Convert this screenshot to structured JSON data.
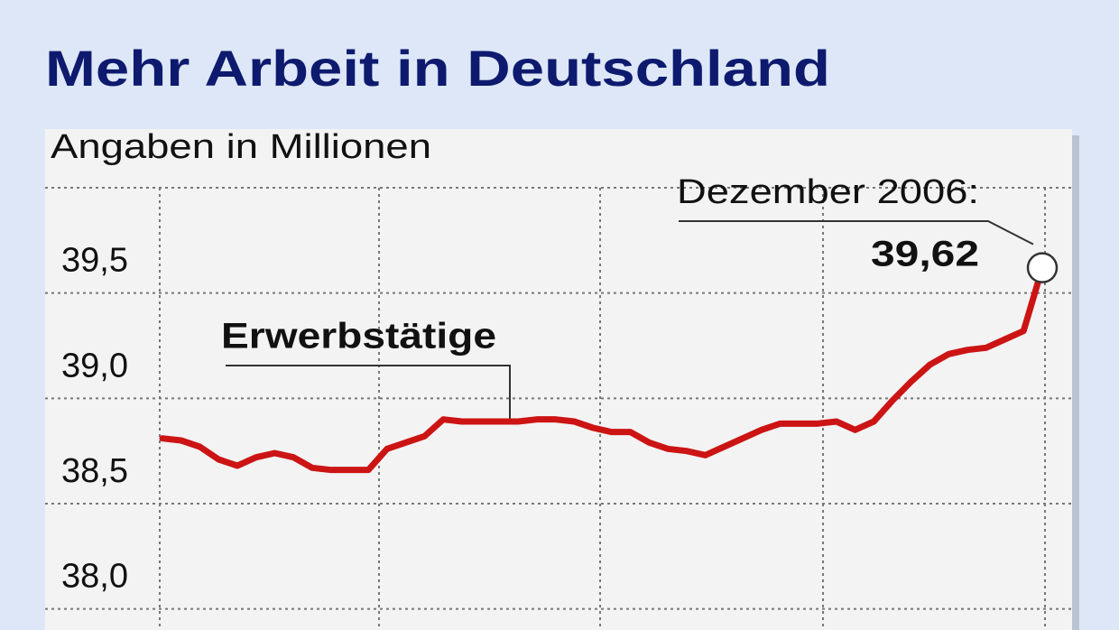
{
  "chart_data": {
    "type": "line",
    "title": "Mehr Arbeit in Deutschland",
    "subtitle": "Angaben in Millionen",
    "categories": [
      null,
      null,
      null,
      null,
      null,
      null,
      null,
      null,
      null,
      null,
      null,
      null,
      null,
      null,
      null,
      null,
      null,
      null,
      null,
      null,
      null,
      null,
      null,
      null,
      null,
      null,
      null,
      null,
      null,
      null,
      null,
      null,
      null,
      null,
      null,
      null,
      null,
      null,
      null,
      null,
      null,
      null,
      null,
      null,
      null,
      null,
      null,
      null
    ],
    "series": [
      {
        "name": "Erwerbstätige",
        "color": "#cc1414",
        "values": [
          38.81,
          38.8,
          38.77,
          38.71,
          38.68,
          38.72,
          38.74,
          38.72,
          38.67,
          38.66,
          38.66,
          38.66,
          38.76,
          38.79,
          38.82,
          38.9,
          38.89,
          38.89,
          38.89,
          38.89,
          38.9,
          38.9,
          38.89,
          38.86,
          38.84,
          38.84,
          38.79,
          38.76,
          38.75,
          38.73,
          38.77,
          38.81,
          38.85,
          38.88,
          38.88,
          38.88,
          38.89,
          38.85,
          38.89,
          38.99,
          39.08,
          39.16,
          39.21,
          39.23,
          39.24,
          39.28,
          39.32,
          39.62
        ],
        "value_labels": [
          null,
          null,
          null,
          null,
          null,
          null,
          null,
          null,
          null,
          null,
          null,
          null,
          null,
          null,
          null,
          null,
          null,
          null,
          null,
          null,
          null,
          null,
          null,
          null,
          null,
          null,
          null,
          null,
          null,
          null,
          null,
          null,
          null,
          null,
          null,
          null,
          null,
          null,
          null,
          null,
          null,
          null,
          null,
          null,
          null,
          null,
          null,
          "39,62"
        ]
      }
    ],
    "annotation": "Dezember 2006:",
    "ylim": [
      37.9,
      40.0
    ],
    "yticks": [
      {
        "value": 39.5,
        "label": "39,5"
      },
      {
        "value": 39.0,
        "label": "39,0"
      },
      {
        "value": 38.5,
        "label": "38,5"
      },
      {
        "value": 38.0,
        "label": "38,0"
      }
    ],
    "grid": true
  }
}
